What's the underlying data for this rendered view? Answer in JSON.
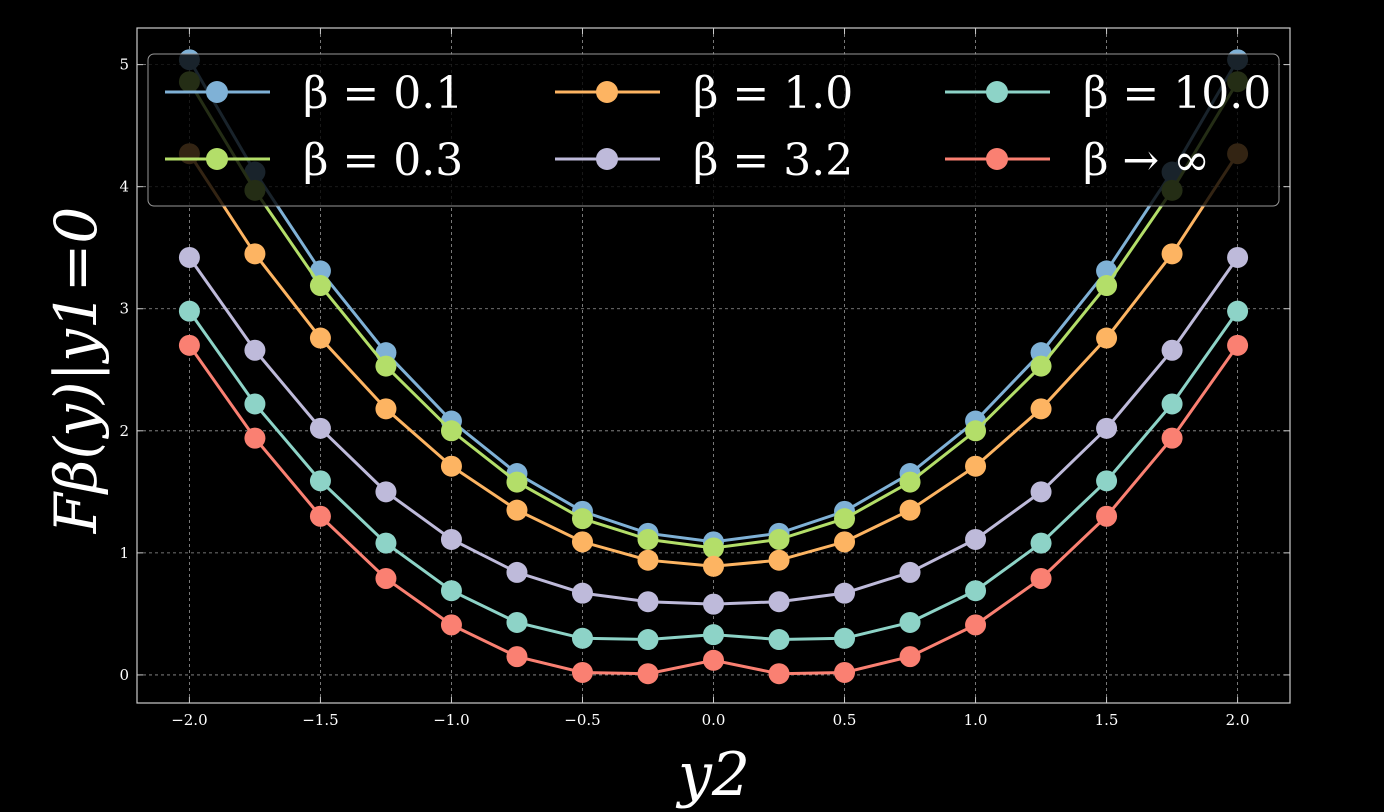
{
  "chart_data": {
    "type": "line",
    "xlabel": "y2",
    "ylabel": "Fβ(y)|y1=0",
    "xlim": [
      -2.2,
      2.2
    ],
    "ylim": [
      -0.23,
      5.3
    ],
    "xticks": [
      -2.0,
      -1.5,
      -1.0,
      -0.5,
      0.0,
      0.5,
      1.0,
      1.5,
      2.0
    ],
    "xtick_labels": [
      "−2.0",
      "−1.5",
      "−1.0",
      "−0.5",
      "0.0",
      "0.5",
      "1.0",
      "1.5",
      "2.0"
    ],
    "yticks": [
      0,
      1,
      2,
      3,
      4,
      5
    ],
    "ytick_labels": [
      "0",
      "1",
      "2",
      "3",
      "4",
      "5"
    ],
    "grid": true,
    "legend_position": "top",
    "x": [
      -2.0,
      -1.75,
      -1.5,
      -1.25,
      -1.0,
      -0.75,
      -0.5,
      -0.25,
      0.0,
      0.25,
      0.5,
      0.75,
      1.0,
      1.25,
      1.5,
      1.75,
      2.0
    ],
    "series": [
      {
        "name": "β = 0.1",
        "color": "#7fb1d6",
        "values": [
          5.04,
          4.12,
          3.31,
          2.64,
          2.08,
          1.65,
          1.34,
          1.16,
          1.09,
          1.16,
          1.34,
          1.65,
          2.08,
          2.64,
          3.31,
          4.12,
          5.04
        ]
      },
      {
        "name": "β = 0.3",
        "color": "#b3de69",
        "values": [
          4.86,
          3.97,
          3.19,
          2.53,
          2.0,
          1.58,
          1.28,
          1.11,
          1.04,
          1.11,
          1.28,
          1.58,
          2.0,
          2.53,
          3.19,
          3.97,
          4.86
        ]
      },
      {
        "name": "β = 1.0",
        "color": "#fdb462",
        "values": [
          4.27,
          3.45,
          2.76,
          2.18,
          1.71,
          1.35,
          1.09,
          0.94,
          0.89,
          0.94,
          1.09,
          1.35,
          1.71,
          2.18,
          2.76,
          3.45,
          4.27
        ]
      },
      {
        "name": "β = 3.2",
        "color": "#bebada",
        "values": [
          3.42,
          2.66,
          2.02,
          1.5,
          1.11,
          0.84,
          0.67,
          0.6,
          0.58,
          0.6,
          0.67,
          0.84,
          1.11,
          1.5,
          2.02,
          2.66,
          3.42
        ]
      },
      {
        "name": "β = 10.0",
        "color": "#8dd3c7",
        "values": [
          2.98,
          2.22,
          1.59,
          1.08,
          0.69,
          0.43,
          0.3,
          0.29,
          0.33,
          0.29,
          0.3,
          0.43,
          0.69,
          1.08,
          1.59,
          2.22,
          2.98
        ]
      },
      {
        "name": "β → ∞",
        "color": "#fa8072",
        "values": [
          2.7,
          1.94,
          1.3,
          0.79,
          0.41,
          0.15,
          0.02,
          0.01,
          0.12,
          0.01,
          0.02,
          0.15,
          0.41,
          0.79,
          1.3,
          1.94,
          2.7
        ]
      }
    ]
  }
}
